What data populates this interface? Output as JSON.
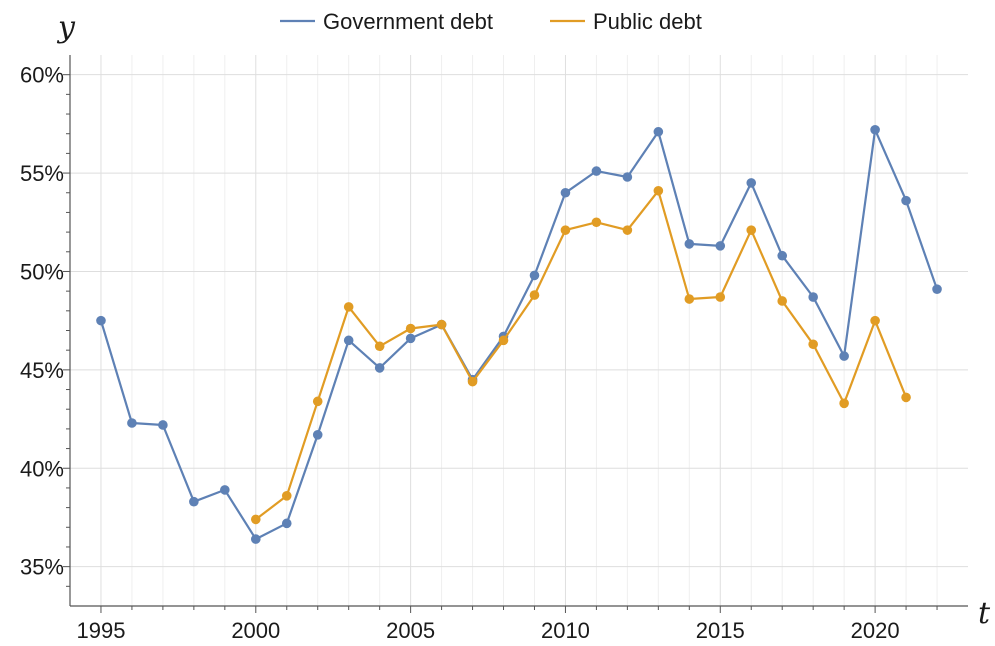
{
  "chart_data": {
    "type": "line",
    "xlabel": "t",
    "ylabel": "y",
    "xlim": [
      1994,
      2023
    ],
    "ylim": [
      33,
      61
    ],
    "x_ticks": [
      1995,
      2000,
      2005,
      2010,
      2015,
      2020
    ],
    "y_ticks": [
      35,
      40,
      45,
      50,
      55,
      60
    ],
    "y_tick_suffix": "%",
    "grid": true,
    "legend_position": "top-center",
    "series": [
      {
        "name": "Government debt",
        "color": "#5e81b5",
        "x": [
          1995,
          1996,
          1997,
          1998,
          1999,
          2000,
          2001,
          2002,
          2003,
          2004,
          2005,
          2006,
          2007,
          2008,
          2009,
          2010,
          2011,
          2012,
          2013,
          2014,
          2015,
          2016,
          2017,
          2018,
          2019,
          2020,
          2021,
          2022
        ],
        "values": [
          47.5,
          42.3,
          42.2,
          38.3,
          38.9,
          36.4,
          37.2,
          41.7,
          46.5,
          45.1,
          46.6,
          47.3,
          44.5,
          46.7,
          49.8,
          54.0,
          55.1,
          54.8,
          57.1,
          51.4,
          51.3,
          54.5,
          50.8,
          48.7,
          45.7,
          57.2,
          53.6,
          49.1
        ]
      },
      {
        "name": "Public debt",
        "color": "#e19c24",
        "x": [
          2000,
          2001,
          2002,
          2003,
          2004,
          2005,
          2006,
          2007,
          2008,
          2009,
          2010,
          2011,
          2012,
          2013,
          2014,
          2015,
          2016,
          2017,
          2018,
          2019,
          2020,
          2021
        ],
        "values": [
          37.4,
          38.6,
          43.4,
          48.2,
          46.2,
          47.1,
          47.3,
          44.4,
          46.5,
          48.8,
          52.1,
          52.5,
          52.1,
          54.1,
          48.6,
          48.7,
          52.1,
          48.5,
          46.3,
          43.3,
          47.5,
          43.6
        ]
      }
    ]
  }
}
